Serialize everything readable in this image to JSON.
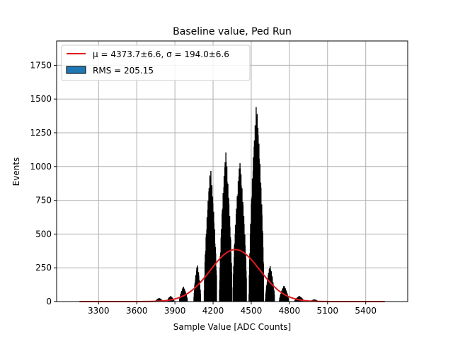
{
  "chart_data": {
    "type": "bar",
    "title": "Baseline value, Ped Run",
    "xlabel": "Sample Value [ADC Counts]",
    "ylabel": "Events",
    "xlim": [
      2970,
      5730
    ],
    "ylim": [
      0,
      1930
    ],
    "xticks": [
      3300,
      3600,
      3900,
      4200,
      4500,
      4800,
      5100,
      5400
    ],
    "yticks": [
      0,
      250,
      500,
      750,
      1000,
      1250,
      1500,
      1750
    ],
    "grid": true,
    "legend_position": "top-left",
    "legend": {
      "fit_label": "μ = 4373.7±6.6, σ = 194.0±6.6",
      "hist_label": "RMS = 205.15"
    },
    "histogram": {
      "color": "#1f77b4",
      "edge_color": "#000000",
      "clusters": [
        {
          "center": 3770,
          "height": 25,
          "width": 60
        },
        {
          "center": 3860,
          "height": 40,
          "width": 60
        },
        {
          "center": 3960,
          "height": 110,
          "width": 70
        },
        {
          "center": 4070,
          "height": 280,
          "width": 60
        },
        {
          "center": 4170,
          "height": 1000,
          "width": 110
        },
        {
          "center": 4290,
          "height": 1120,
          "width": 110
        },
        {
          "center": 4400,
          "height": 1050,
          "width": 120
        },
        {
          "center": 4530,
          "height": 1480,
          "width": 130
        },
        {
          "center": 4640,
          "height": 270,
          "width": 80
        },
        {
          "center": 4750,
          "height": 120,
          "width": 80
        },
        {
          "center": 4870,
          "height": 40,
          "width": 80
        },
        {
          "center": 4990,
          "height": 15,
          "width": 60
        }
      ]
    },
    "fit": {
      "mu": 4373.7,
      "sigma": 194.0,
      "amplitude": 385,
      "x_range": [
        3150,
        5550
      ],
      "color": "#e31a1c"
    }
  }
}
